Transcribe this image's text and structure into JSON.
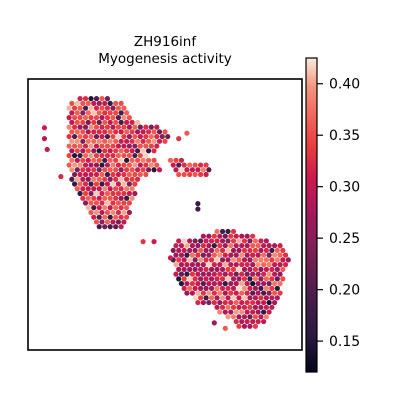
{
  "chart_data": {
    "type": "scatter",
    "subtype": "spatial-hexbin",
    "title_lines": [
      "ZH916inf",
      "Myogenesis activity"
    ],
    "xlabel": "",
    "ylabel": "",
    "axis_ticks_visible": false,
    "grid": false,
    "legend": "none",
    "colorbar": {
      "colormap": "rocket",
      "position": "right",
      "range": [
        0.12,
        0.425
      ],
      "ticks": [
        0.15,
        0.2,
        0.25,
        0.3,
        0.35,
        0.4
      ],
      "tick_labels": [
        "0.15",
        "0.20",
        "0.25",
        "0.30",
        "0.35",
        "0.40"
      ]
    },
    "value_range": [
      0.12,
      0.425
    ],
    "xlim": [
      0,
      100
    ],
    "ylim": [
      0,
      100
    ],
    "tissue_regions": [
      {
        "name": "upper-left lobe",
        "mean_value": 0.33,
        "outline": [
          [
            15,
            92
          ],
          [
            21,
            94
          ],
          [
            28,
            93
          ],
          [
            34,
            92
          ],
          [
            36,
            90
          ],
          [
            38,
            86
          ],
          [
            44,
            83
          ],
          [
            50,
            82
          ],
          [
            52,
            79
          ],
          [
            48,
            74
          ],
          [
            44,
            72
          ],
          [
            48,
            70
          ],
          [
            50,
            66
          ],
          [
            44,
            66
          ],
          [
            40,
            60
          ],
          [
            38,
            54
          ],
          [
            36,
            46
          ],
          [
            30,
            44
          ],
          [
            24,
            46
          ],
          [
            20,
            56
          ],
          [
            16,
            62
          ],
          [
            14,
            68
          ],
          [
            15,
            78
          ],
          [
            14,
            86
          ]
        ]
      },
      {
        "name": "right protrusion",
        "mean_value": 0.33,
        "outline": [
          [
            52,
            71
          ],
          [
            58,
            70
          ],
          [
            66,
            69
          ],
          [
            68,
            66
          ],
          [
            62,
            63
          ],
          [
            56,
            64
          ],
          [
            52,
            67
          ]
        ]
      },
      {
        "name": "lower-right lobe",
        "mean_value": 0.3,
        "outline": [
          [
            54,
            42
          ],
          [
            60,
            40
          ],
          [
            68,
            44
          ],
          [
            76,
            44
          ],
          [
            84,
            42
          ],
          [
            94,
            38
          ],
          [
            96,
            33
          ],
          [
            94,
            28
          ],
          [
            92,
            20
          ],
          [
            90,
            14
          ],
          [
            84,
            8
          ],
          [
            78,
            8
          ],
          [
            72,
            12
          ],
          [
            68,
            16
          ],
          [
            60,
            18
          ],
          [
            56,
            24
          ],
          [
            52,
            32
          ]
        ]
      }
    ],
    "outlier_spots": [
      {
        "x": 6,
        "y": 82,
        "value": 0.31
      },
      {
        "x": 6,
        "y": 78,
        "value": 0.29
      },
      {
        "x": 7,
        "y": 74,
        "value": 0.3
      },
      {
        "x": 12,
        "y": 64,
        "value": 0.32
      },
      {
        "x": 55,
        "y": 78,
        "value": 0.33
      },
      {
        "x": 58,
        "y": 80,
        "value": 0.36
      },
      {
        "x": 42,
        "y": 40,
        "value": 0.33
      },
      {
        "x": 46,
        "y": 40,
        "value": 0.31
      },
      {
        "x": 62,
        "y": 54,
        "value": 0.17
      },
      {
        "x": 62,
        "y": 52,
        "value": 0.18
      },
      {
        "x": 52,
        "y": 34,
        "value": 0.31
      },
      {
        "x": 68,
        "y": 10,
        "value": 0.27
      },
      {
        "x": 72,
        "y": 8,
        "value": 0.36
      }
    ]
  }
}
